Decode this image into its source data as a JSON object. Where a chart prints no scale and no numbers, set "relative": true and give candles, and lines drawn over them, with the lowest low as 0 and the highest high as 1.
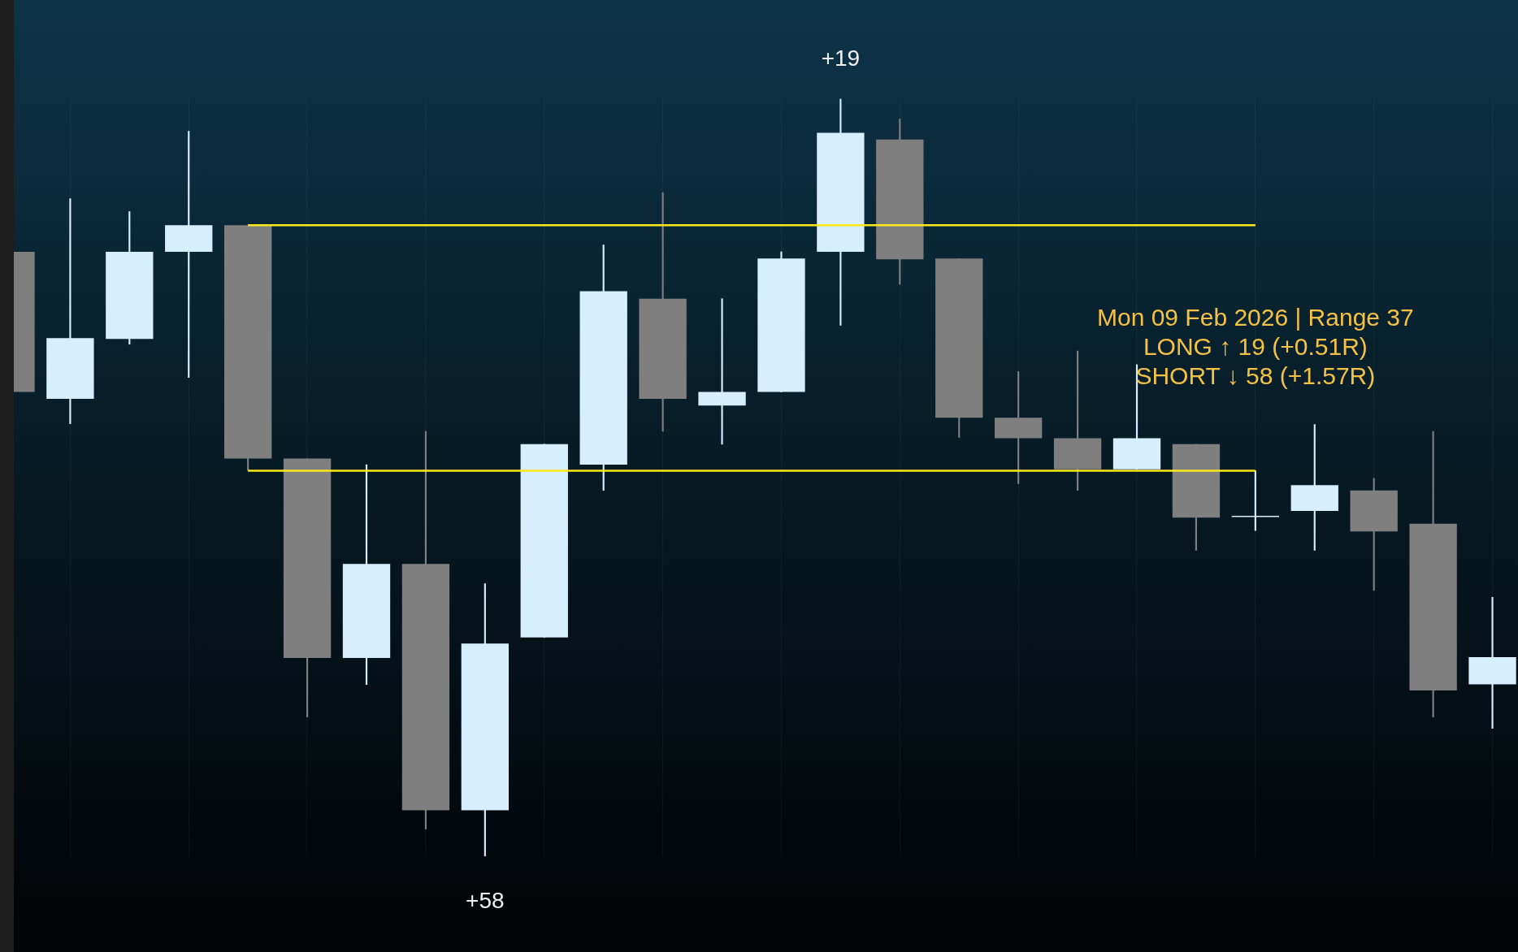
{
  "chart_data": {
    "type": "candlestick",
    "relative": true,
    "categories": [
      null,
      null,
      null,
      null,
      null,
      null,
      null,
      null,
      null,
      null,
      null,
      null,
      null,
      null,
      null,
      null,
      null,
      null,
      null,
      null,
      null,
      null,
      null,
      null,
      null,
      null
    ],
    "ohlc": [
      [
        0.798,
        0.798,
        0.613,
        0.613
      ],
      [
        0.604,
        0.868,
        0.571,
        0.684
      ],
      [
        0.683,
        0.851,
        0.676,
        0.798
      ],
      [
        0.798,
        0.957,
        0.632,
        0.833
      ],
      [
        0.833,
        0.833,
        0.509,
        0.525
      ],
      [
        0.525,
        0.525,
        0.184,
        0.262
      ],
      [
        0.262,
        0.517,
        0.227,
        0.386
      ],
      [
        0.386,
        0.561,
        0.036,
        0.061
      ],
      [
        0.061,
        0.36,
        0.0,
        0.281
      ],
      [
        0.289,
        0.544,
        0.289,
        0.544
      ],
      [
        0.517,
        0.807,
        0.483,
        0.746
      ],
      [
        0.736,
        0.876,
        0.561,
        0.604
      ],
      [
        0.595,
        0.736,
        0.544,
        0.613
      ],
      [
        0.613,
        0.798,
        0.613,
        0.789
      ],
      [
        0.798,
        1.0,
        0.701,
        0.955
      ],
      [
        0.946,
        0.973,
        0.755,
        0.788
      ],
      [
        0.789,
        0.789,
        0.553,
        0.579
      ],
      [
        0.579,
        0.64,
        0.492,
        0.552
      ],
      [
        0.552,
        0.667,
        0.483,
        0.511
      ],
      [
        0.511,
        0.649,
        0.511,
        0.552
      ],
      [
        0.544,
        0.544,
        0.404,
        0.447
      ],
      [
        0.448,
        0.509,
        0.43,
        0.448
      ],
      [
        0.456,
        0.57,
        0.404,
        0.49
      ],
      [
        0.483,
        0.499,
        0.351,
        0.429
      ],
      [
        0.439,
        0.561,
        0.184,
        0.219
      ],
      [
        0.227,
        0.342,
        0.169,
        0.263
      ]
    ],
    "colors": [
      "#7f7f7f",
      "#d6eefd",
      "#d6eefd",
      "#d6eefd",
      "#7f7f7f",
      "#7f7f7f",
      "#d6eefd",
      "#7f7f7f",
      "#d6eefd",
      "#d6eefd",
      "#d6eefd",
      "#7f7f7f",
      "#d6eefd",
      "#d6eefd",
      "#d6eefd",
      "#7f7f7f",
      "#7f7f7f",
      "#7f7f7f",
      "#7f7f7f",
      "#d6eefd",
      "#7f7f7f",
      "#d6eefd",
      "#d6eefd",
      "#7f7f7f",
      "#7f7f7f",
      "#d6eefd"
    ],
    "series": [
      {
        "type": "line",
        "color": "#fbe81a",
        "values": [
          null,
          null,
          null,
          null,
          0.833,
          0.833,
          0.833,
          0.833,
          0.833,
          0.833,
          0.833,
          0.833,
          0.833,
          0.833,
          0.833,
          0.833,
          0.833,
          0.833,
          0.833,
          0.833,
          0.833,
          0.833,
          null,
          null,
          null,
          null
        ]
      },
      {
        "type": "line",
        "color": "#fbe81a",
        "values": [
          null,
          null,
          null,
          null,
          0.509,
          0.509,
          0.509,
          0.509,
          0.509,
          0.509,
          0.509,
          0.509,
          0.509,
          0.509,
          0.509,
          0.509,
          0.509,
          0.509,
          0.509,
          0.509,
          0.509,
          0.509,
          null,
          null,
          null,
          null
        ]
      }
    ],
    "annotations": [
      {
        "text": "+19",
        "y": 1.0
      },
      {
        "text": "+58",
        "y": 0.0
      },
      "Mon 09 Feb 2026 | Range 37",
      "LONG ↑ 19 (+0.51R)",
      "SHORT ↓ 58 (+1.57R)"
    ],
    "grid": "x",
    "tick_labels": false
  }
}
